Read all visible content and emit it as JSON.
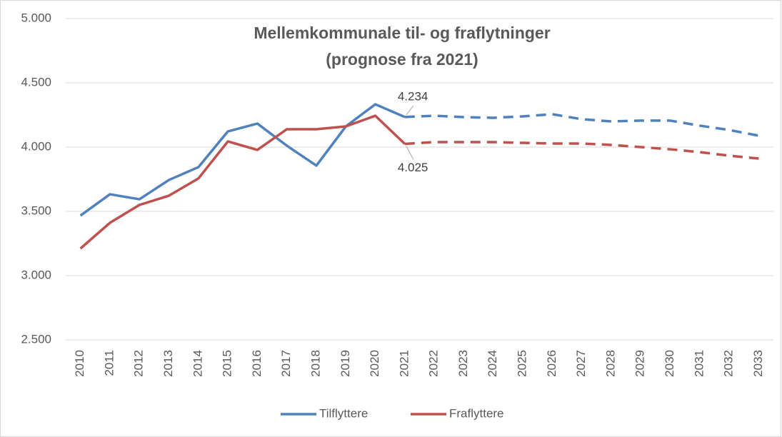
{
  "chart_data": {
    "type": "line",
    "title": [
      "Mellemkommunale til- og fraflytninger",
      "(prognose fra 2021)"
    ],
    "categories": [
      "2010",
      "2011",
      "2012",
      "2013",
      "2014",
      "2015",
      "2016",
      "2017",
      "2018",
      "2019",
      "2020",
      "2021",
      "2022",
      "2023",
      "2024",
      "2025",
      "2026",
      "2027",
      "2028",
      "2029",
      "2030",
      "2031",
      "2032",
      "2033"
    ],
    "series": [
      {
        "name": "Tilflyttere",
        "color": "#4f81bd",
        "values": [
          3467,
          3633,
          3594,
          3744,
          3844,
          4122,
          4183,
          4011,
          3856,
          4161,
          4333,
          4234,
          4244,
          4233,
          4228,
          4239,
          4256,
          4217,
          4200,
          4206,
          4206,
          4167,
          4133,
          4089
        ],
        "value_labels": [
          null,
          null,
          null,
          null,
          null,
          null,
          null,
          null,
          null,
          null,
          null,
          "4.234",
          null,
          null,
          null,
          null,
          null,
          null,
          null,
          null,
          null,
          null,
          null,
          null
        ]
      },
      {
        "name": "Fraflyttere",
        "color": "#c0504d",
        "values": [
          3211,
          3411,
          3550,
          3622,
          3756,
          4044,
          3978,
          4139,
          4139,
          4161,
          4244,
          4025,
          4039,
          4039,
          4039,
          4033,
          4028,
          4028,
          4017,
          4000,
          3983,
          3961,
          3933,
          3911
        ],
        "value_labels": [
          null,
          null,
          null,
          null,
          null,
          null,
          null,
          null,
          null,
          null,
          null,
          "4.025",
          null,
          null,
          null,
          null,
          null,
          null,
          null,
          null,
          null,
          null,
          null,
          null
        ]
      }
    ],
    "dashed_from": "2021",
    "ylim": [
      2500,
      5000
    ],
    "yticks": [
      {
        "value": 2500,
        "label": "2.500"
      },
      {
        "value": 3000,
        "label": "3.000"
      },
      {
        "value": 3500,
        "label": "3.500"
      },
      {
        "value": 4000,
        "label": "4.000"
      },
      {
        "value": 4500,
        "label": "4.500"
      },
      {
        "value": 5000,
        "label": "5.000"
      }
    ],
    "grid": true,
    "legend": "bottom"
  }
}
